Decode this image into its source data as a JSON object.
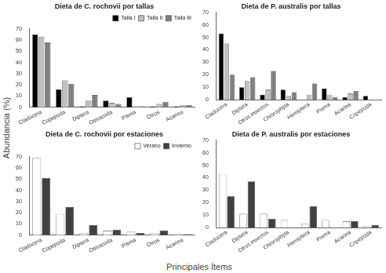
{
  "ylabel": "Abundancia (%)",
  "xlabel": "Principales Ítems",
  "chart_data": [
    {
      "type": "bar",
      "title": "Dieta de C. rochovii por tallas",
      "categories": [
        "Cladocera",
        "Copepoda",
        "Diptera",
        "Ostracoda",
        "Pisma",
        "Otros",
        "Acarina"
      ],
      "series": [
        {
          "name": "Talla I",
          "color": "#000000",
          "values": [
            65,
            16,
            1,
            6,
            9,
            1,
            1
          ]
        },
        {
          "name": "Talla II",
          "color": "#c0c0c0",
          "values": [
            63,
            24,
            6,
            4,
            1,
            3,
            2
          ]
        },
        {
          "name": "Talla III",
          "color": "#808080",
          "values": [
            58,
            21,
            11,
            3,
            1,
            5,
            2
          ]
        }
      ],
      "ylim": [
        0,
        70
      ],
      "yticks": [
        0,
        10,
        20,
        30,
        40,
        50,
        60,
        70
      ],
      "grid": false,
      "legend": "upper right"
    },
    {
      "type": "bar",
      "title": "Dieta de P. australis por tallas",
      "categories": [
        "Cladocera",
        "Diptera",
        "Otros insectos",
        "Chlorophyta",
        "Hemiptera",
        "Pisma",
        "Acarina",
        "Copepoda"
      ],
      "series": [
        {
          "color": "#000000",
          "values": [
            53,
            10,
            4,
            8,
            0,
            9,
            2,
            3
          ]
        },
        {
          "color": "#c0c0c0",
          "values": [
            45,
            15,
            8,
            3,
            4,
            4,
            5,
            0
          ]
        },
        {
          "color": "#808080",
          "values": [
            20,
            18,
            23,
            6,
            13,
            2,
            7,
            0
          ]
        }
      ],
      "ylim": [
        0,
        70
      ],
      "yticks": [
        0,
        10,
        20,
        30,
        40,
        50,
        60,
        70
      ],
      "grid": false
    },
    {
      "type": "bar",
      "title": "Dieta de C. rochovii por estaciones",
      "categories": [
        "Cladocera",
        "Copepoda",
        "Diptera",
        "Ostracoda",
        "Pisma",
        "Otros",
        "Acarina"
      ],
      "series": [
        {
          "name": "Verano",
          "color": "#ffffff",
          "values": [
            69,
            19,
            2,
            4,
            3,
            2,
            1
          ]
        },
        {
          "name": "Invierno",
          "color": "#404040",
          "values": [
            51,
            25,
            9,
            5,
            2,
            4,
            1
          ]
        }
      ],
      "ylim": [
        0,
        70
      ],
      "yticks": [
        0,
        10,
        20,
        30,
        40,
        50,
        60,
        70
      ],
      "grid": false,
      "legend": "upper right"
    },
    {
      "type": "bar",
      "title": "Dieta de P. australis por estaciones",
      "categories": [
        "Cladocera",
        "Diptera",
        "Otros insectos",
        "Chlorophyta",
        "Hemiptera",
        "Pisma",
        "Acarina",
        "Copepoda"
      ],
      "series": [
        {
          "color": "#ffffff",
          "values": [
            43,
            11,
            11,
            6,
            3,
            6,
            5,
            1
          ]
        },
        {
          "color": "#404040",
          "values": [
            25,
            37,
            7,
            0,
            17,
            0,
            5,
            2
          ]
        }
      ],
      "ylim": [
        0,
        70
      ],
      "yticks": [
        0,
        10,
        20,
        30,
        40,
        50,
        60,
        70
      ],
      "grid": false
    }
  ]
}
